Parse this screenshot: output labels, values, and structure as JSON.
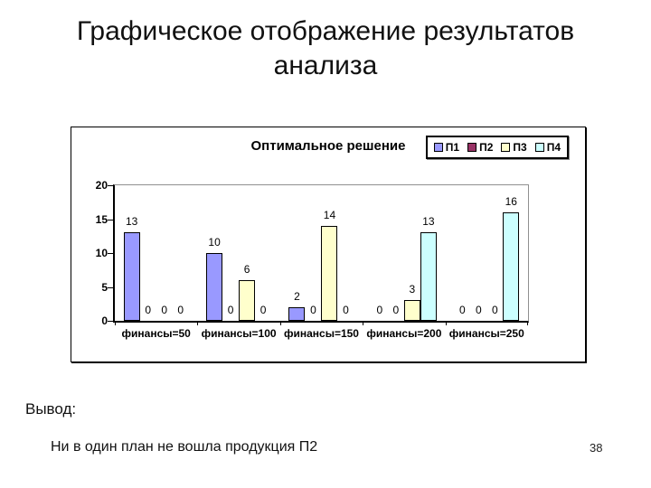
{
  "slide": {
    "title": "Графическое отображение результатов\nанализа",
    "conclusion": {
      "label": "Вывод:",
      "text": "Ни в один план не вошла продукция П2"
    },
    "page_number": "38"
  },
  "chart_data": {
    "type": "bar",
    "title": "Оптимальное решение",
    "categories": [
      "финансы=50",
      "финансы=100",
      "финансы=150",
      "финансы=200",
      "финансы=250"
    ],
    "series": [
      {
        "name": "П1",
        "color": "#9999FF",
        "values": [
          13,
          10,
          2,
          0,
          0
        ]
      },
      {
        "name": "П2",
        "color": "#993366",
        "values": [
          0,
          0,
          0,
          0,
          0
        ]
      },
      {
        "name": "П3",
        "color": "#FFFFCC",
        "values": [
          0,
          6,
          14,
          3,
          0
        ]
      },
      {
        "name": "П4",
        "color": "#CCFFFF",
        "values": [
          0,
          0,
          0,
          13,
          16
        ]
      }
    ],
    "xlabel": "",
    "ylabel": "",
    "ylim": [
      0,
      20
    ],
    "yticks": [
      0,
      5,
      10,
      15,
      20
    ],
    "legend_position": "top-right",
    "grid": false,
    "data_labels": true,
    "bar_border_color": "#000000",
    "axis_color": "#000000",
    "plot_border_color": "#909090"
  }
}
